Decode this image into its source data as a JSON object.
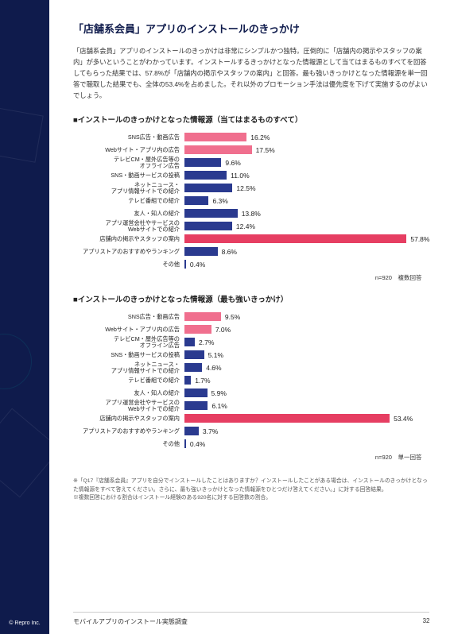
{
  "page": {
    "title": "「店舗系会員」アプリのインストールのきっかけ",
    "intro": "「店舗系会員」アプリのインストールのきっかけは非常にシンプルかつ独特。圧倒的に「店舗内の掲示やスタッフの案内」が多いということがわかっています。インストールするきっかけとなった情報源として当てはまるものすべてを回答してもらった結果では、57.8%が「店舗内の掲示やスタッフの案内」と回答。最も強いきっかけとなった情報源を単一回答で聴取した結果でも、全体の53.4%を占めました。それ以外のプロモーション手法は優先度を下げて実施するのがよいでしょう。",
    "copyright": "© Repro Inc.",
    "footer_title": "モバイルアプリのインストール実態調査",
    "page_number": "32"
  },
  "chart1": {
    "title": "■インストールのきっかけとなった情報源（当てはまるものすべて）",
    "note": "n=920　複数回答",
    "max": 60,
    "rows": [
      {
        "label": "SNS広告・動画広告",
        "value": 16.2,
        "color": "#f06f8e"
      },
      {
        "label": "Webサイト・アプリ内の広告",
        "value": 17.5,
        "color": "#f06f8e"
      },
      {
        "label": "テレビCM・屋外広告等の\nオフライン広告",
        "value": 9.6,
        "color": "#2a3a8f"
      },
      {
        "label": "SNS・動画サービスの投稿",
        "value": 11.0,
        "color": "#2a3a8f"
      },
      {
        "label": "ネットニュース・\nアプリ情報サイトでの紹介",
        "value": 12.5,
        "color": "#2a3a8f"
      },
      {
        "label": "テレビ番組での紹介",
        "value": 6.3,
        "color": "#2a3a8f"
      },
      {
        "label": "友人・知人の紹介",
        "value": 13.8,
        "color": "#2a3a8f"
      },
      {
        "label": "アプリ運営会社やサービスの\nWebサイトでの紹介",
        "value": 12.4,
        "color": "#2a3a8f"
      },
      {
        "label": "店舗内の掲示やスタッフの案内",
        "value": 57.8,
        "color": "#e63e62"
      },
      {
        "label": "アプリストアのおすすめやランキング",
        "value": 8.6,
        "color": "#2a3a8f"
      },
      {
        "label": "その他",
        "value": 0.4,
        "color": "#2a3a8f"
      }
    ]
  },
  "chart2": {
    "title": "■インストールのきっかけとなった情報源（最も強いきっかけ）",
    "note": "n=920　単一回答",
    "max": 60,
    "rows": [
      {
        "label": "SNS広告・動画広告",
        "value": 9.5,
        "color": "#f06f8e"
      },
      {
        "label": "Webサイト・アプリ内の広告",
        "value": 7.0,
        "color": "#f06f8e"
      },
      {
        "label": "テレビCM・屋外広告等の\nオフライン広告",
        "value": 2.7,
        "color": "#2a3a8f"
      },
      {
        "label": "SNS・動画サービスの投稿",
        "value": 5.1,
        "color": "#2a3a8f"
      },
      {
        "label": "ネットニュース・\nアプリ情報サイトでの紹介",
        "value": 4.6,
        "color": "#2a3a8f"
      },
      {
        "label": "テレビ番組での紹介",
        "value": 1.7,
        "color": "#2a3a8f"
      },
      {
        "label": "友人・知人の紹介",
        "value": 5.9,
        "color": "#2a3a8f"
      },
      {
        "label": "アプリ運営会社やサービスの\nWebサイトでの紹介",
        "value": 6.1,
        "color": "#2a3a8f"
      },
      {
        "label": "店舗内の掲示やスタッフの案内",
        "value": 53.4,
        "color": "#e63e62"
      },
      {
        "label": "アプリストアのおすすめやランキング",
        "value": 3.7,
        "color": "#2a3a8f"
      },
      {
        "label": "その他",
        "value": 0.4,
        "color": "#2a3a8f"
      }
    ]
  },
  "footnotes": [
    "※「Q17『店舗系会員』アプリを自分でインストールしたことはありますか？インストールしたことがある場合は、インストールのきっかけとなった情報源をすべて答えてください。さらに、最も強いきっかけとなった情報源をひとつだけ答えてください。」に対する回答結果。",
    "※複数回答における割合はインストール経験のある920名に対する回答数の割合。"
  ]
}
